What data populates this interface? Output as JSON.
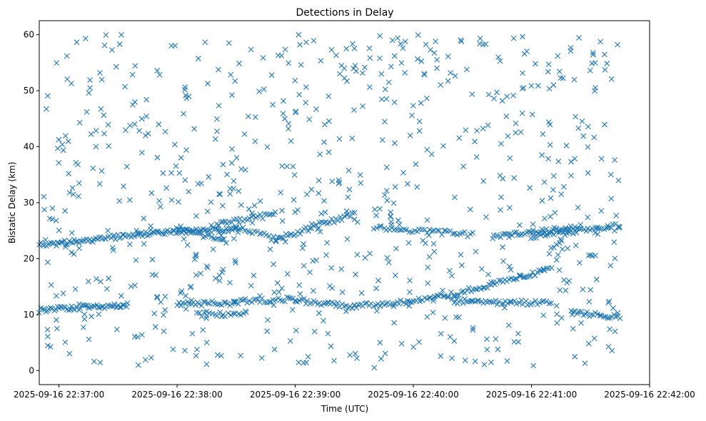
{
  "chart_data": {
    "type": "scatter",
    "title": "Detections in Delay",
    "xlabel": "Time (UTC)",
    "ylabel": "Bistatic Delay (km)",
    "x_start": "2025-09-16 22:36:50",
    "x_end": "2025-09-16 22:42:00",
    "xlim": [
      "2025-09-16 22:36:50",
      "2025-09-16 22:42:00"
    ],
    "ylim": [
      -2.5,
      62.5
    ],
    "x_ticks": [
      "2025-09-16 22:37:00",
      "2025-09-16 22:38:00",
      "2025-09-16 22:39:00",
      "2025-09-16 22:40:00",
      "2025-09-16 22:41:00",
      "2025-09-16 22:42:00"
    ],
    "y_ticks": [
      0,
      10,
      20,
      30,
      40,
      50,
      60
    ],
    "marker": "x",
    "grid": false,
    "series": [
      {
        "color": "#1f77b4",
        "tracks": [
          {
            "from": "2025-09-16 22:36:50",
            "to": "2025-09-16 22:37:40",
            "y0": 22.4,
            "y1": 24.3,
            "count": 60
          },
          {
            "from": "2025-09-16 22:37:40",
            "to": "2025-09-16 22:38:30",
            "y0": 24.4,
            "y1": 25.3,
            "count": 60
          },
          {
            "from": "2025-09-16 22:38:00",
            "to": "2025-09-16 22:38:25",
            "y0": 25.6,
            "y1": 23.0,
            "count": 25
          },
          {
            "from": "2025-09-16 22:38:20",
            "to": "2025-09-16 22:38:50",
            "y0": 26.0,
            "y1": 28.0,
            "count": 28
          },
          {
            "from": "2025-09-16 22:38:30",
            "to": "2025-09-16 22:38:50",
            "y0": 25.5,
            "y1": 23.5,
            "count": 18
          },
          {
            "from": "2025-09-16 22:38:50",
            "to": "2025-09-16 22:39:30",
            "y0": 23.5,
            "y1": 28.0,
            "count": 40
          },
          {
            "from": "2025-09-16 22:39:40",
            "to": "2025-09-16 22:40:30",
            "y0": 25.5,
            "y1": 24.3,
            "count": 40
          },
          {
            "from": "2025-09-16 22:40:40",
            "to": "2025-09-16 22:41:20",
            "y0": 24.0,
            "y1": 25.5,
            "count": 40
          },
          {
            "from": "2025-09-16 22:41:00",
            "to": "2025-09-16 22:41:45",
            "y0": 24.0,
            "y1": 26.0,
            "count": 40
          },
          {
            "from": "2025-09-16 22:36:50",
            "to": "2025-09-16 22:37:35",
            "y0": 10.8,
            "y1": 11.8,
            "count": 55
          },
          {
            "from": "2025-09-16 22:38:00",
            "to": "2025-09-16 22:38:30",
            "y0": 12.0,
            "y1": 12.0,
            "count": 30
          },
          {
            "from": "2025-09-16 22:38:10",
            "to": "2025-09-16 22:38:35",
            "y0": 10.0,
            "y1": 10.0,
            "count": 20
          },
          {
            "from": "2025-09-16 22:38:30",
            "to": "2025-09-16 22:39:00",
            "y0": 12.3,
            "y1": 12.8,
            "count": 28
          },
          {
            "from": "2025-09-16 22:39:00",
            "to": "2025-09-16 22:39:30",
            "y0": 12.5,
            "y1": 11.5,
            "count": 30
          },
          {
            "from": "2025-09-16 22:39:30",
            "to": "2025-09-16 22:40:10",
            "y0": 11.5,
            "y1": 12.8,
            "count": 38
          },
          {
            "from": "2025-09-16 22:40:10",
            "to": "2025-09-16 22:41:10",
            "y0": 12.8,
            "y1": 18.0,
            "count": 60
          },
          {
            "from": "2025-09-16 22:40:20",
            "to": "2025-09-16 22:40:50",
            "y0": 12.5,
            "y1": 12.0,
            "count": 30
          },
          {
            "from": "2025-09-16 22:40:50",
            "to": "2025-09-16 22:41:10",
            "y0": 12.2,
            "y1": 12.0,
            "count": 18
          },
          {
            "from": "2025-09-16 22:41:20",
            "to": "2025-09-16 22:41:45",
            "y0": 10.5,
            "y1": 9.5,
            "count": 25
          },
          {
            "from": "2025-09-16 22:41:10",
            "to": "2025-09-16 22:41:25",
            "y0": 22.0,
            "y1": 26.0,
            "count": 12
          }
        ],
        "noise": {
          "from": "2025-09-16 22:36:50",
          "to": "2025-09-16 22:41:45",
          "y_min": 0.5,
          "y_max": 60,
          "count": 720
        }
      }
    ]
  }
}
